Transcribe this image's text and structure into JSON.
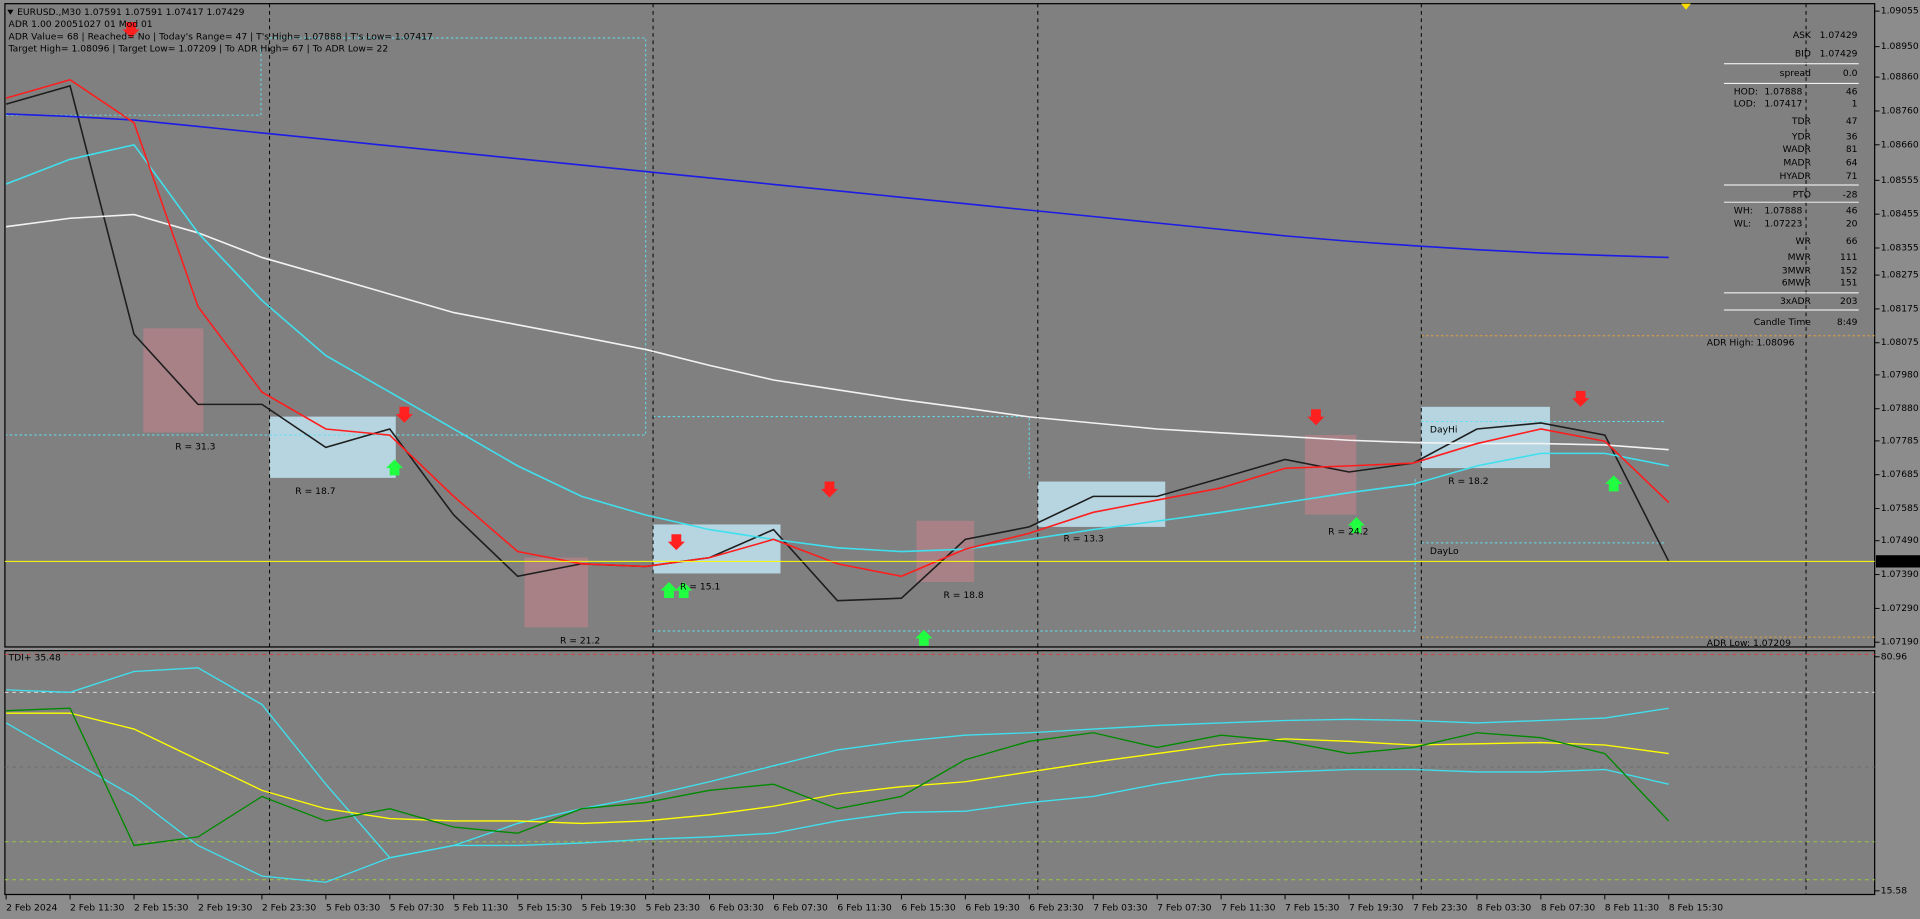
{
  "header": {
    "lines": [
      "EURUSD.,M30  1.07591 1.07591 1.07417 1.07429",
      "ADR 1.00 20051027 01 Mod 01",
      "ADR Value= 68   | Reached= No   | Today's Range= 47   | T's High= 1.07888   | T's Low= 1.07417",
      "Target High= 1.08096   | Target Low= 1.07209   | To ADR High= 67   | To ADR Low= 22"
    ]
  },
  "chart_data": [
    {
      "type": "line",
      "categories": [
        "2 Feb 2024",
        "2 Feb 11:30",
        "2 Feb 15:30",
        "2 Feb 19:30",
        "2 Feb 23:30",
        "5 Feb 03:30",
        "5 Feb 07:30",
        "5 Feb 11:30",
        "5 Feb 15:30",
        "5 Feb 19:30",
        "5 Feb 23:30",
        "6 Feb 03:30",
        "6 Feb 07:30",
        "6 Feb 11:30",
        "6 Feb 15:30",
        "6 Feb 19:30",
        "6 Feb 23:30",
        "7 Feb 03:30",
        "7 Feb 07:30",
        "7 Feb 11:30",
        "7 Feb 15:30",
        "7 Feb 19:30",
        "7 Feb 23:30",
        "8 Feb 03:30",
        "8 Feb 07:30",
        "8 Feb 11:30",
        "8 Feb 15:30"
      ],
      "ylim": [
        1.07176,
        1.09077
      ],
      "yticks": [
        1.09055,
        {
          "value": 1.0895,
          "label": "1.08950"
        },
        {
          "value": 1.0886,
          "label": "1.08860"
        },
        {
          "value": 1.0876,
          "label": "1.08760"
        },
        {
          "value": 1.0866,
          "label": "1.08660"
        },
        1.08555,
        1.08455,
        1.08355,
        1.08275,
        1.08175,
        1.08075,
        {
          "value": 1.0798,
          "label": "1.07980"
        },
        {
          "value": 1.0788,
          "label": "1.07880"
        },
        1.07785,
        1.07685,
        1.07585,
        {
          "value": 1.0749,
          "label": "1.07490"
        },
        {
          "value": 1.0739,
          "label": "1.07390"
        },
        {
          "value": 1.0729,
          "label": "1.07290"
        },
        {
          "value": 1.0719,
          "label": "1.07190"
        }
      ],
      "current_price": 1.07429,
      "series": [
        {
          "color": "#1e1e1e",
          "values": [
            1.0878,
            1.08834,
            1.081,
            1.07893,
            1.07893,
            1.07766,
            1.0782,
            1.07566,
            1.07385,
            1.07422,
            1.07414,
            1.0744,
            1.07523,
            1.07313,
            1.0732,
            1.07494,
            1.07531,
            1.07621,
            1.07621,
            1.07675,
            1.0773,
            1.07693,
            1.07719,
            1.0782,
            1.07838,
            1.07802,
            1.07429
          ]
        },
        {
          "color": "#1c1ce6",
          "values": [
            1.08751,
            1.08744,
            1.08733,
            1.08714,
            1.08695,
            1.08676,
            1.08657,
            1.08638,
            1.08619,
            1.086,
            1.08581,
            1.08562,
            1.08543,
            1.08524,
            1.08505,
            1.08486,
            1.08467,
            1.08448,
            1.08429,
            1.0841,
            1.08391,
            1.08375,
            1.08362,
            1.0835,
            1.0834,
            1.08333,
            1.08327
          ]
        },
        {
          "color": "#f2f2f2",
          "values": [
            1.08418,
            1.08443,
            1.08454,
            1.084,
            1.08327,
            1.08273,
            1.08219,
            1.08164,
            1.08128,
            1.08092,
            1.08055,
            1.08008,
            1.07965,
            1.07936,
            1.07907,
            1.07882,
            1.07856,
            1.07838,
            1.0782,
            1.07809,
            1.07798,
            1.07787,
            1.0778,
            1.07777,
            1.07777,
            1.07773,
            1.07759
          ]
        },
        {
          "color": "#3fe0ee",
          "values": [
            1.08544,
            1.08617,
            1.0866,
            1.084,
            1.082,
            1.08037,
            1.07929,
            1.0782,
            1.07711,
            1.07621,
            1.07566,
            1.07523,
            1.07494,
            1.07469,
            1.07458,
            1.07465,
            1.07494,
            1.07523,
            1.07548,
            1.07574,
            1.07603,
            1.07632,
            1.07657,
            1.07711,
            1.07748,
            1.07748,
            1.07711
          ]
        },
        {
          "color": "#ff1e1e",
          "values": [
            1.08798,
            1.08852,
            1.08725,
            1.08182,
            1.07929,
            1.0782,
            1.07802,
            1.07621,
            1.07458,
            1.07422,
            1.07414,
            1.0744,
            1.07494,
            1.07422,
            1.07385,
            1.07465,
            1.07512,
            1.07574,
            1.0761,
            1.07646,
            1.07704,
            1.07711,
            1.07719,
            1.07777,
            1.0782,
            1.07784,
            1.07603
          ]
        }
      ]
    },
    {
      "type": "line",
      "title": "TDI+ 35.48",
      "ylim": [
        14.55,
        82.67
      ],
      "yticks": [
        80.96,
        15.58
      ],
      "series": [
        {
          "color": "#3fe0ee",
          "values": [
            71.72,
            71.03,
            76.85,
            77.88,
            67.61,
            45.36,
            24.81,
            28.24,
            34.4,
            38.51,
            41.93,
            46.04,
            50.49,
            54.94,
            57.34,
            59.05,
            59.73,
            60.76,
            61.79,
            62.47,
            63.16,
            63.5,
            63.16,
            62.47,
            63.16,
            63.84,
            66.58
          ]
        },
        {
          "color": "#3fe0ee",
          "values": [
            62.47,
            52.2,
            41.93,
            28.24,
            19.68,
            17.97,
            24.81,
            28.24,
            28.24,
            28.92,
            29.95,
            30.63,
            31.66,
            35.08,
            37.48,
            37.82,
            40.22,
            41.93,
            45.36,
            48.09,
            48.78,
            49.46,
            49.46,
            48.78,
            48.78,
            49.46,
            45.36
          ]
        },
        {
          "color": "#ffff00",
          "values": [
            65.21,
            65.21,
            60.76,
            52.2,
            43.64,
            38.51,
            35.77,
            35.08,
            35.08,
            34.4,
            35.08,
            36.8,
            39.19,
            42.62,
            44.67,
            46.04,
            48.78,
            51.52,
            53.91,
            56.31,
            58.02,
            57.34,
            56.31,
            56.65,
            56.99,
            56.31,
            53.91
          ]
        },
        {
          "color": "#008a00",
          "values": [
            65.9,
            66.58,
            28.24,
            30.63,
            41.93,
            35.08,
            38.51,
            33.37,
            31.66,
            38.51,
            40.22,
            43.64,
            45.36,
            38.51,
            41.93,
            52.2,
            57.34,
            59.73,
            55.63,
            59.05,
            57.34,
            53.91,
            55.63,
            59.73,
            58.36,
            53.91,
            35.08
          ]
        }
      ]
    }
  ],
  "info_panel": {
    "rows": [
      {
        "label": "ASK",
        "value": 1.07429
      },
      {
        "label": "BID",
        "value": 1.07429
      },
      {
        "label": "spread",
        "value": "0.0"
      },
      {
        "label": "HOD:",
        "price": 1.07888,
        "value": 46
      },
      {
        "label": "LOD:",
        "price": 1.07417,
        "value": 1
      },
      {
        "label": "TDR",
        "value": 47
      },
      {
        "label": "YDR",
        "value": 36
      },
      {
        "label": "WADR",
        "value": 81
      },
      {
        "label": "MADR",
        "value": 64
      },
      {
        "label": "HYADR",
        "value": 71
      },
      {
        "label": "PTO",
        "value": -28
      },
      {
        "label": "WH:",
        "price": 1.07888,
        "value": 46
      },
      {
        "label": "WL:",
        "price": 1.07223,
        "value": 20
      },
      {
        "label": "WR",
        "value": 66
      },
      {
        "label": "MWR",
        "value": 111
      },
      {
        "label": "3MWR",
        "value": 152
      },
      {
        "label": "6MWR",
        "value": 151
      },
      {
        "label": "3xADR",
        "value": 203
      },
      {
        "label": "Candle Time",
        "value": "8:49"
      }
    ]
  },
  "annotations": {
    "adr_high": "ADR High: 1.08096",
    "adr_low": "ADR Low: 1.07209",
    "day_hi": "DayHi",
    "day_lo": "DayLo",
    "ranges": [
      "R = 31.3",
      "R = 18.7",
      "R = 21.2",
      "R = 15.1",
      "R = 18.8",
      "R = 13.3",
      "R = 24.2",
      "R = 18.2"
    ]
  }
}
